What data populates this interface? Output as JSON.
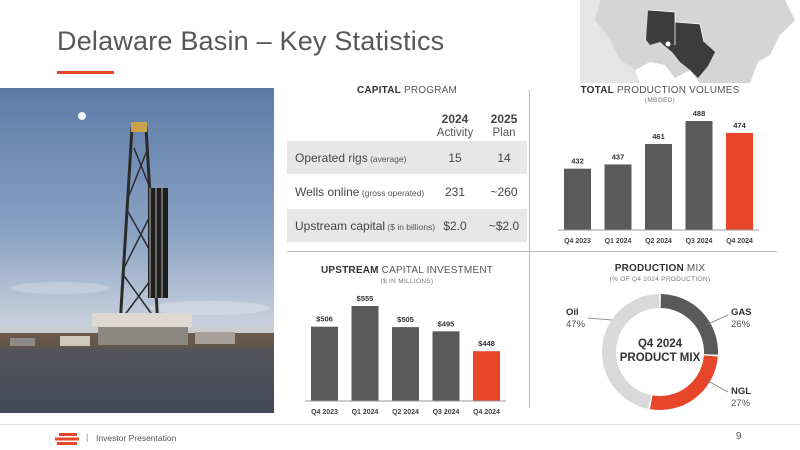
{
  "title": "Delaware Basin – Key Statistics",
  "colors": {
    "accent": "#e8462a",
    "bar_gray": "#5a5a5a",
    "donut_oil": "#d9d9d9",
    "donut_gas": "#595959",
    "donut_ngl": "#e8462a",
    "table_shade": "#e7e7e7"
  },
  "icons": {
    "photo": "drilling-rig-photo",
    "map": "us-map-permian-icon",
    "logo": "company-logo-icon"
  },
  "capital_program": {
    "heading_bold": "CAPITAL",
    "heading_rest": " PROGRAM",
    "col1_year": "2024",
    "col1_sub": "Activity",
    "col2_year": "2025",
    "col2_sub": "Plan",
    "rows": [
      {
        "label": "Operated rigs",
        "qualifier": " (average)",
        "v2024": "15",
        "v2025": "14"
      },
      {
        "label": "Wells online",
        "qualifier": " (gross operated)",
        "v2024": "231",
        "v2025": "~260"
      },
      {
        "label": "Upstream capital",
        "qualifier": " ($ in billions)",
        "v2024": "$2.0",
        "v2025": "~$2.0"
      }
    ]
  },
  "production_volumes": {
    "heading_bold": "TOTAL",
    "heading_rest": " PRODUCTION VOLUMES",
    "sub": "(MBOED)"
  },
  "capital_investment": {
    "heading_bold": "UPSTREAM",
    "heading_rest": " CAPITAL INVESTMENT",
    "sub": "($ IN MILLIONS)"
  },
  "production_mix": {
    "heading_bold": "PRODUCTION",
    "heading_rest": " MIX",
    "sub": "(% OF Q4 2024 PRODUCTION)",
    "center_line1": "Q4 2024",
    "center_line2": "PRODUCT MIX"
  },
  "chart_data": [
    {
      "type": "bar",
      "title": "TOTAL PRODUCTION VOLUMES",
      "subtitle": "(MBOED)",
      "categories": [
        "Q4 2023",
        "Q1 2024",
        "Q2 2024",
        "Q3 2024",
        "Q4 2024"
      ],
      "values": [
        432,
        437,
        461,
        488,
        474
      ],
      "labels": [
        "432",
        "437",
        "461",
        "488",
        "474"
      ],
      "highlight_index": 4
    },
    {
      "type": "bar",
      "title": "UPSTREAM CAPITAL INVESTMENT",
      "subtitle": "($ IN MILLIONS)",
      "categories": [
        "Q4 2023",
        "Q1 2024",
        "Q2 2024",
        "Q3 2024",
        "Q4 2024"
      ],
      "values": [
        506,
        555,
        505,
        495,
        448
      ],
      "labels": [
        "$506",
        "$555",
        "$505",
        "$495",
        "$448"
      ],
      "highlight_index": 4
    },
    {
      "type": "pie",
      "title": "PRODUCTION MIX",
      "subtitle": "(% OF Q4 2024 PRODUCTION)",
      "slices": [
        {
          "name": "GAS",
          "value": 26,
          "label": "26%"
        },
        {
          "name": "NGL",
          "value": 27,
          "label": "27%"
        },
        {
          "name": "Oil",
          "value": 47,
          "label": "47%"
        }
      ]
    }
  ],
  "footer": {
    "separator": "|",
    "text": "Investor Presentation",
    "page": "9"
  }
}
